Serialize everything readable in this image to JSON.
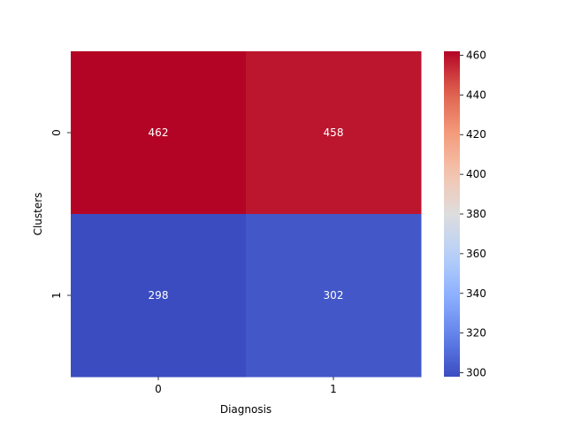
{
  "chart_data": {
    "type": "heatmap",
    "title": "",
    "xlabel": "Diagnosis",
    "ylabel": "Clusters",
    "x_categories": [
      "0",
      "1"
    ],
    "y_categories": [
      "0",
      "1"
    ],
    "values": [
      [
        462,
        458
      ],
      [
        298,
        302
      ]
    ],
    "colormap": "coolwarm",
    "colorbar": {
      "vmin": 298,
      "vmax": 462,
      "ticks": [
        300,
        320,
        340,
        360,
        380,
        400,
        420,
        440,
        460
      ]
    },
    "annotation_color": "#ffffff",
    "grid": false
  }
}
